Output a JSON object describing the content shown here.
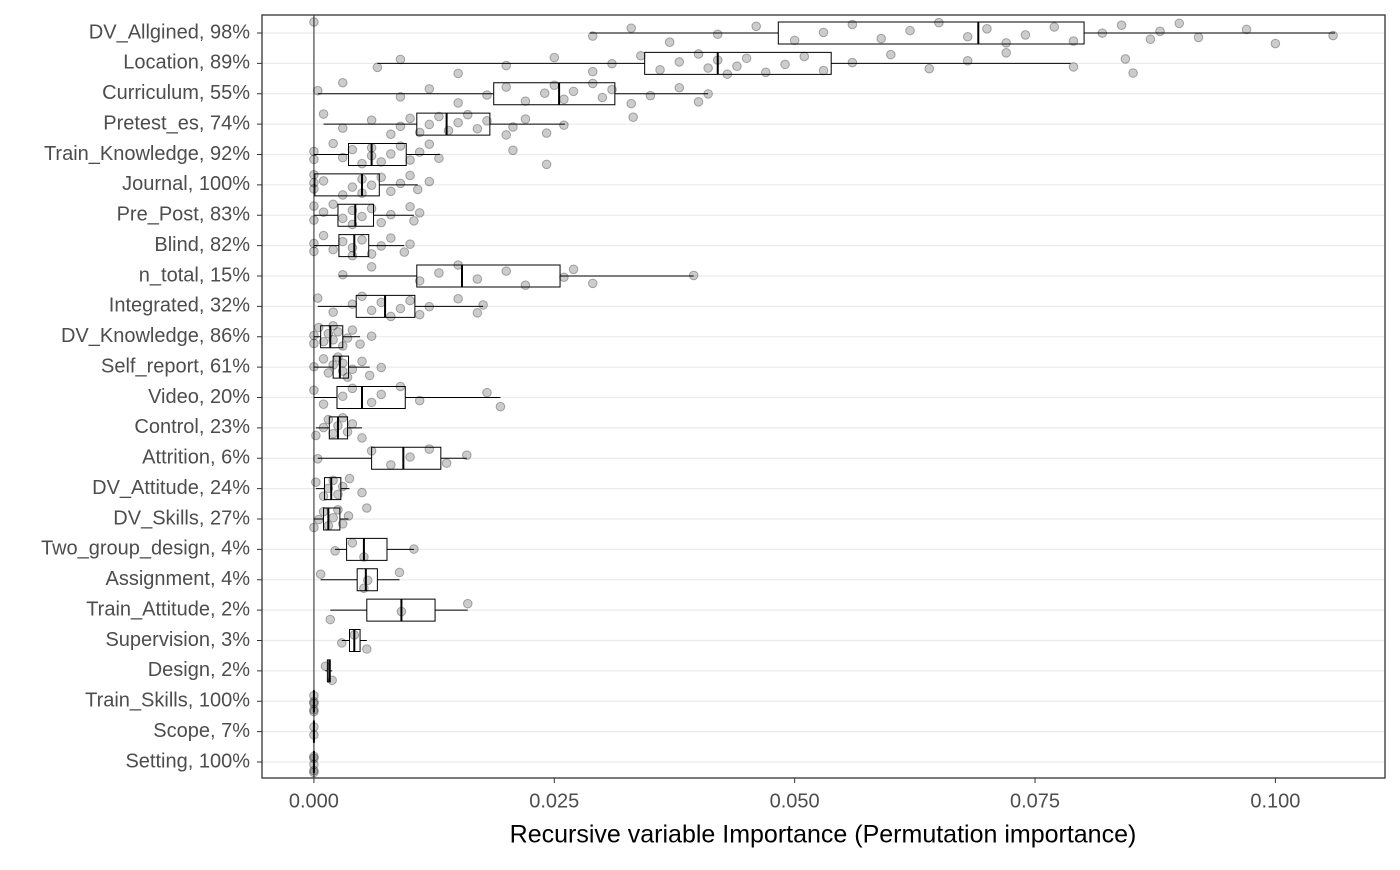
{
  "chart_data": {
    "type": "boxplot",
    "orientation": "horizontal",
    "x_label": "Recursive variable Importance (Permutation importance)",
    "categories": [
      "DV_Allgined, 98%",
      "Location, 89%",
      "Curriculum, 55%",
      "Pretest_es, 74%",
      "Train_Knowledge, 92%",
      "Journal, 100%",
      "Pre_Post, 83%",
      "Blind, 82%",
      "n_total, 15%",
      "Integrated, 32%",
      "DV_Knowledge, 86%",
      "Self_report, 61%",
      "Video, 20%",
      "Control, 23%",
      "Attrition, 6%",
      "DV_Attitude, 24%",
      "DV_Skills, 27%",
      "Two_group_design, 4%",
      "Assignment, 4%",
      "Train_Attitude, 2%",
      "Supervision, 3%",
      "Design, 2%",
      "Train_Skills, 100%",
      "Scope, 7%",
      "Setting, 100%"
    ],
    "boxes": [
      {
        "min": 0.0287,
        "q1": 0.0483,
        "median": 0.0691,
        "q3": 0.0801,
        "max": 0.1062,
        "points": [
          0,
          0.029,
          0.033,
          0.037,
          0.042,
          0.046,
          0.05,
          0.053,
          0.056,
          0.059,
          0.062,
          0.065,
          0.068,
          0.07,
          0.072,
          0.074,
          0.077,
          0.079,
          0.082,
          0.084,
          0.087,
          0.088,
          0.09,
          0.092,
          0.097,
          0.1,
          0.106
        ]
      },
      {
        "min": 0.0066,
        "q1": 0.0344,
        "median": 0.042,
        "q3": 0.0538,
        "max": 0.0787,
        "points": [
          0.0066,
          0.009,
          0.015,
          0.02,
          0.025,
          0.029,
          0.031,
          0.034,
          0.036,
          0.038,
          0.04,
          0.041,
          0.042,
          0.043,
          0.044,
          0.045,
          0.047,
          0.049,
          0.051,
          0.053,
          0.056,
          0.06,
          0.064,
          0.068,
          0.072,
          0.079,
          0.0844,
          0.0852
        ]
      },
      {
        "min": 0.0004,
        "q1": 0.0187,
        "median": 0.0255,
        "q3": 0.0313,
        "max": 0.041,
        "points": [
          0.0004,
          0.003,
          0.009,
          0.012,
          0.015,
          0.018,
          0.02,
          0.022,
          0.024,
          0.025,
          0.026,
          0.027,
          0.029,
          0.03,
          0.031,
          0.033,
          0.035,
          0.038,
          0.04,
          0.041
        ]
      },
      {
        "min": 0.001,
        "q1": 0.0107,
        "median": 0.0138,
        "q3": 0.0183,
        "max": 0.0261,
        "points": [
          0.001,
          0.003,
          0.006,
          0.008,
          0.009,
          0.01,
          0.011,
          0.012,
          0.013,
          0.014,
          0.015,
          0.016,
          0.017,
          0.018,
          0.02,
          0.0207,
          0.022,
          0.0242,
          0.026,
          0.0332
        ]
      },
      {
        "min": 0,
        "q1": 0.0036,
        "median": 0.006,
        "q3": 0.0096,
        "max": 0.0131,
        "points": [
          0,
          0,
          0.002,
          0.003,
          0.004,
          0.005,
          0.006,
          0.006,
          0.007,
          0.008,
          0.009,
          0.01,
          0.011,
          0.012,
          0.013,
          0.0207,
          0.0242
        ]
      },
      {
        "min": 0,
        "q1": 0.0001,
        "median": 0.005,
        "q3": 0.0068,
        "max": 0.0108,
        "points": [
          0,
          0,
          0,
          0.001,
          0.003,
          0.004,
          0.005,
          0.005,
          0.006,
          0.007,
          0.008,
          0.009,
          0.01,
          0.0108,
          0.012
        ]
      },
      {
        "min": 0,
        "q1": 0.0025,
        "median": 0.0043,
        "q3": 0.0062,
        "max": 0.0104,
        "points": [
          0,
          0,
          0.001,
          0.002,
          0.003,
          0.004,
          0.004,
          0.005,
          0.006,
          0.007,
          0.008,
          0.01,
          0.0104,
          0.011
        ]
      },
      {
        "min": 0,
        "q1": 0.0026,
        "median": 0.0042,
        "q3": 0.0057,
        "max": 0.0094,
        "points": [
          0,
          0,
          0.001,
          0.002,
          0.003,
          0.004,
          0.004,
          0.005,
          0.006,
          0.007,
          0.008,
          0.0094,
          0.01
        ]
      },
      {
        "min": 0.0026,
        "q1": 0.0107,
        "median": 0.0154,
        "q3": 0.0256,
        "max": 0.0395,
        "points": [
          0.003,
          0.006,
          0.011,
          0.013,
          0.015,
          0.017,
          0.02,
          0.022,
          0.026,
          0.027,
          0.029,
          0.0395
        ]
      },
      {
        "min": 0.0004,
        "q1": 0.0044,
        "median": 0.0074,
        "q3": 0.0105,
        "max": 0.0176,
        "points": [
          0.0004,
          0.002,
          0.004,
          0.005,
          0.006,
          0.007,
          0.008,
          0.009,
          0.01,
          0.011,
          0.012,
          0.015,
          0.017,
          0.0176
        ]
      },
      {
        "min": 0,
        "q1": 0.0007,
        "median": 0.0017,
        "q3": 0.003,
        "max": 0.0048,
        "points": [
          0,
          0,
          0.0005,
          0.001,
          0.0015,
          0.002,
          0.002,
          0.0025,
          0.003,
          0.0035,
          0.004,
          0.0048,
          0.006
        ]
      },
      {
        "min": 0,
        "q1": 0.002,
        "median": 0.0027,
        "q3": 0.0036,
        "max": 0.0058,
        "points": [
          0,
          0.001,
          0.0015,
          0.002,
          0.0025,
          0.003,
          0.003,
          0.0035,
          0.004,
          0.005,
          0.0058,
          0.007
        ]
      },
      {
        "min": 0,
        "q1": 0.0024,
        "median": 0.005,
        "q3": 0.0095,
        "max": 0.0194,
        "points": [
          0,
          0.001,
          0.003,
          0.004,
          0.006,
          0.007,
          0.009,
          0.011,
          0.018,
          0.0194
        ]
      },
      {
        "min": 0.0002,
        "q1": 0.0016,
        "median": 0.0025,
        "q3": 0.0035,
        "max": 0.005,
        "points": [
          0.0002,
          0.001,
          0.0015,
          0.002,
          0.0025,
          0.003,
          0.0035,
          0.004,
          0.005
        ]
      },
      {
        "min": 0.0004,
        "q1": 0.006,
        "median": 0.0093,
        "q3": 0.0132,
        "max": 0.0159,
        "points": [
          0.0004,
          0.006,
          0.008,
          0.01,
          0.012,
          0.0138,
          0.0159
        ]
      },
      {
        "min": 0.0002,
        "q1": 0.0011,
        "median": 0.0018,
        "q3": 0.0028,
        "max": 0.0037,
        "points": [
          0.0002,
          0.001,
          0.0015,
          0.002,
          0.0025,
          0.003,
          0.0037,
          0.005
        ]
      },
      {
        "min": 0,
        "q1": 0.001,
        "median": 0.0015,
        "q3": 0.0027,
        "max": 0.0036,
        "points": [
          0,
          0.0005,
          0.001,
          0.0015,
          0.002,
          0.0025,
          0.003,
          0.0036,
          0.0055
        ]
      },
      {
        "min": 0.0022,
        "q1": 0.0034,
        "median": 0.0052,
        "q3": 0.0076,
        "max": 0.0104,
        "points": [
          0.0022,
          0.004,
          0.0052,
          0.0104
        ]
      },
      {
        "min": 0.0007,
        "q1": 0.0045,
        "median": 0.0054,
        "q3": 0.0066,
        "max": 0.0089,
        "points": [
          0.0007,
          0.0052,
          0.0056,
          0.0089
        ]
      },
      {
        "min": 0.0017,
        "q1": 0.0055,
        "median": 0.0091,
        "q3": 0.0126,
        "max": 0.016,
        "points": [
          0.0017,
          0.0091,
          0.016
        ]
      },
      {
        "min": 0.0029,
        "q1": 0.0037,
        "median": 0.0042,
        "q3": 0.0048,
        "max": 0.0055,
        "points": [
          0.0029,
          0.0042,
          0.0055
        ]
      },
      {
        "min": 0.0012,
        "q1": 0.0014,
        "median": 0.0016,
        "q3": 0.0017,
        "max": 0.0019,
        "points": [
          0.0012,
          0.0019
        ]
      },
      {
        "min": 0,
        "q1": 0,
        "median": 0,
        "q3": 0,
        "max": 0,
        "points": [
          0,
          0,
          0,
          0,
          0
        ]
      },
      {
        "min": 0,
        "q1": 0,
        "median": 0,
        "q3": 0,
        "max": 0,
        "points": [
          0,
          0
        ]
      },
      {
        "min": 0,
        "q1": 0,
        "median": 0,
        "q3": 0,
        "max": 0,
        "points": [
          0,
          0,
          0,
          0,
          0
        ]
      }
    ],
    "xlim": [
      -0.0054,
      0.1114
    ],
    "xticks": [
      {
        "value": 0,
        "label": "0.000"
      },
      {
        "value": 0.025,
        "label": "0.025"
      },
      {
        "value": 0.05,
        "label": "0.050"
      },
      {
        "value": 0.075,
        "label": "0.075"
      },
      {
        "value": 0.1,
        "label": "0.100"
      }
    ],
    "vline": 0,
    "grid": true,
    "point_color": "#000000"
  }
}
